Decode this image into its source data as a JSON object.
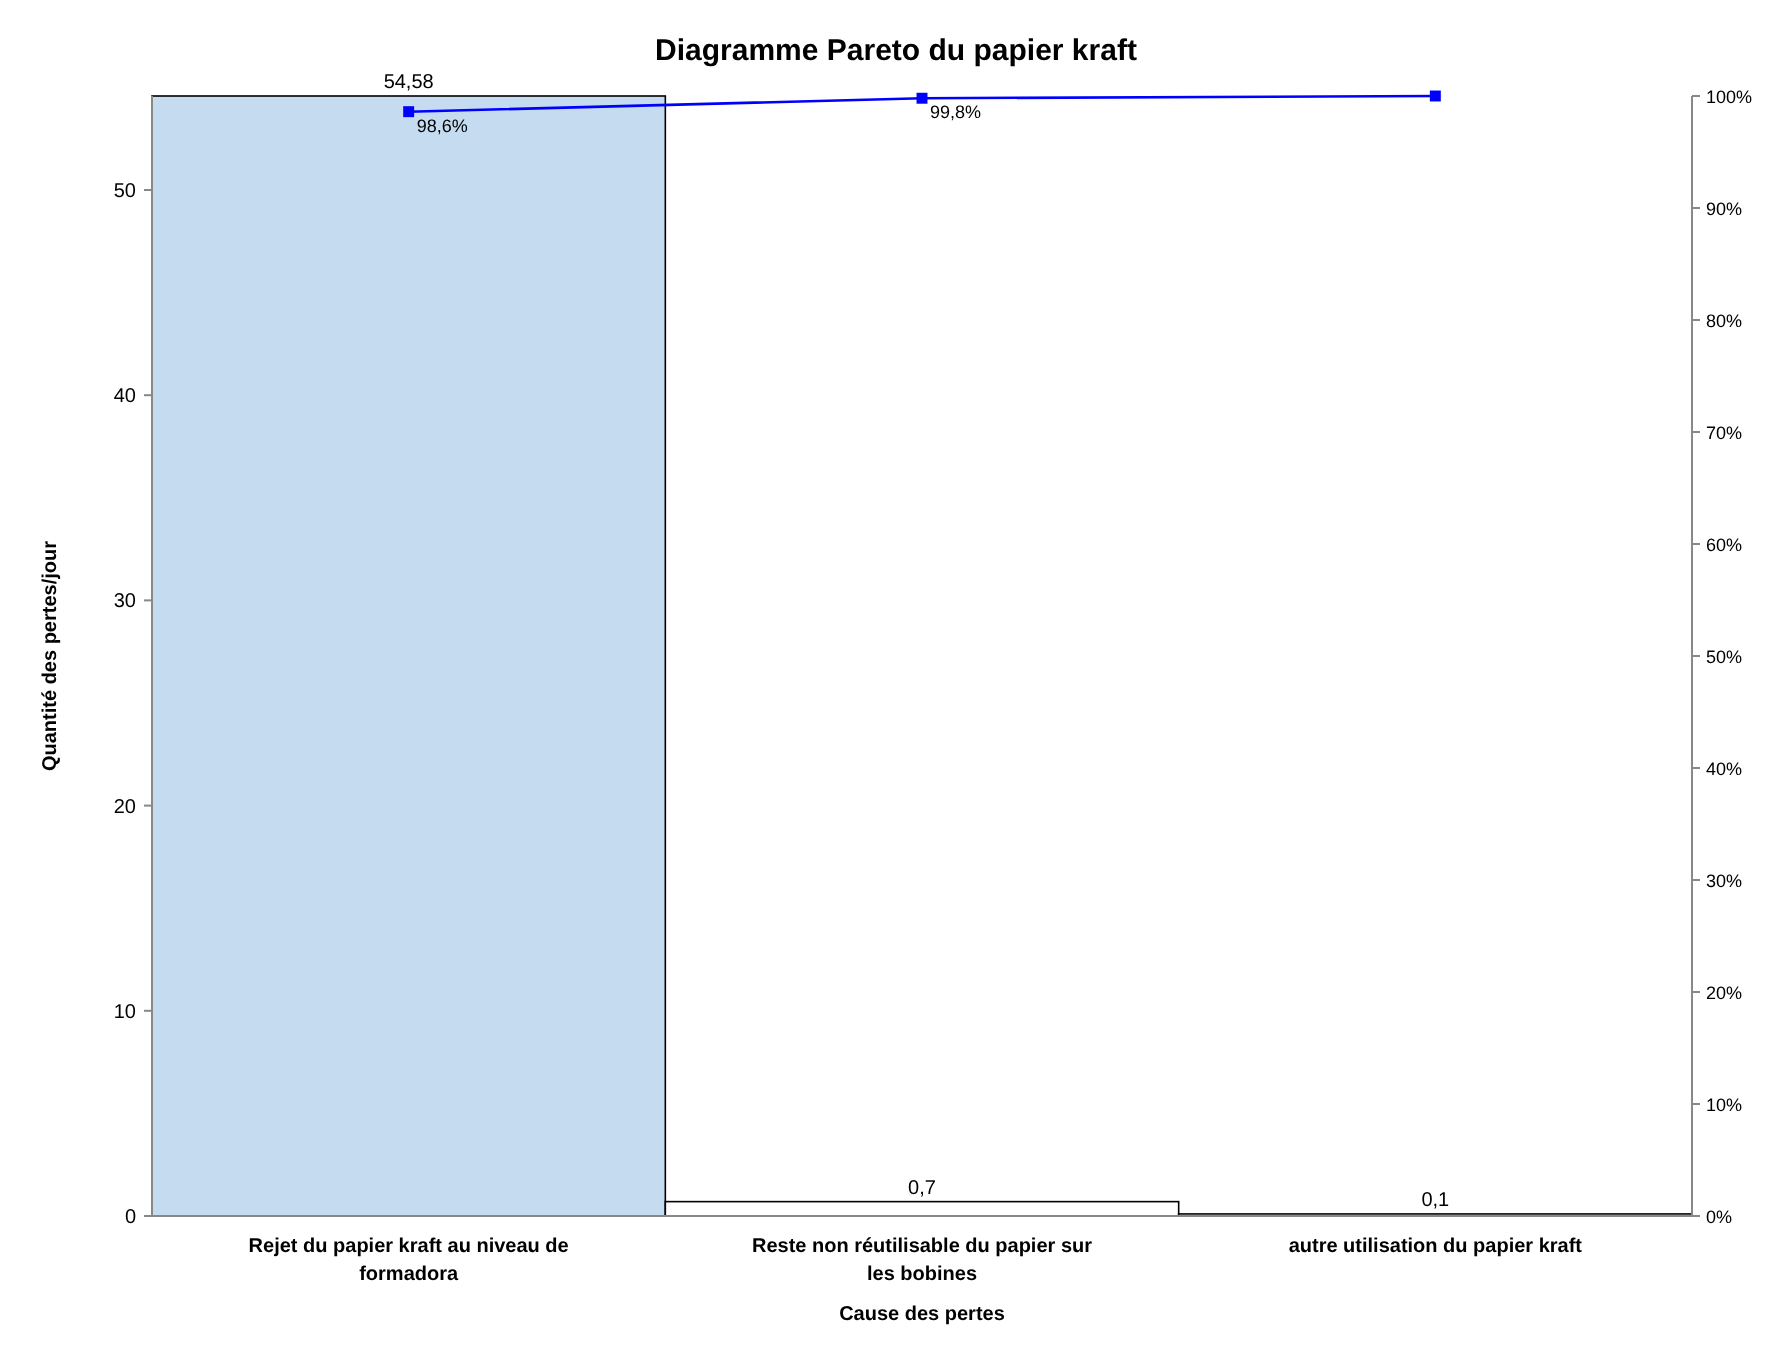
{
  "chart_data": {
    "type": "bar",
    "title": "Diagramme Pareto du papier kraft",
    "xlabel": "Cause des pertes",
    "ylabel": "Quantité des pertes/jour",
    "categories": [
      "Rejet du papier kraft au niveau de formadora",
      "Reste non réutilisable du papier sur les bobines",
      "autre utilisation du papier kraft"
    ],
    "series": [
      {
        "colors": [
          "#c5dbef",
          "#ffffff",
          "#ffffff"
        ],
        "values": [
          54.58,
          0.7,
          0.1
        ],
        "value_labels": [
          "54,58",
          "0,7",
          "0,1"
        ]
      },
      {
        "type": "line",
        "axis": "y2",
        "color": "#0000ff",
        "values": [
          98.6,
          99.8,
          100
        ],
        "value_labels": [
          "98,6%",
          "99,8%",
          null
        ]
      }
    ],
    "marker": "square",
    "ylim": [
      0,
      54.58
    ],
    "yticks": [
      0,
      10,
      20,
      30,
      40,
      50
    ],
    "y2lim": [
      0,
      100
    ],
    "y2ticks": [
      {
        "value": 0,
        "label": "0%"
      },
      {
        "value": 10,
        "label": "10%"
      },
      {
        "value": 20,
        "label": "20%"
      },
      {
        "value": 30,
        "label": "30%"
      },
      {
        "value": 40,
        "label": "40%"
      },
      {
        "value": 50,
        "label": "50%"
      },
      {
        "value": 60,
        "label": "60%"
      },
      {
        "value": 70,
        "label": "70%"
      },
      {
        "value": 80,
        "label": "80%"
      },
      {
        "value": 90,
        "label": "90%"
      },
      {
        "value": 100,
        "label": "100%"
      }
    ]
  }
}
